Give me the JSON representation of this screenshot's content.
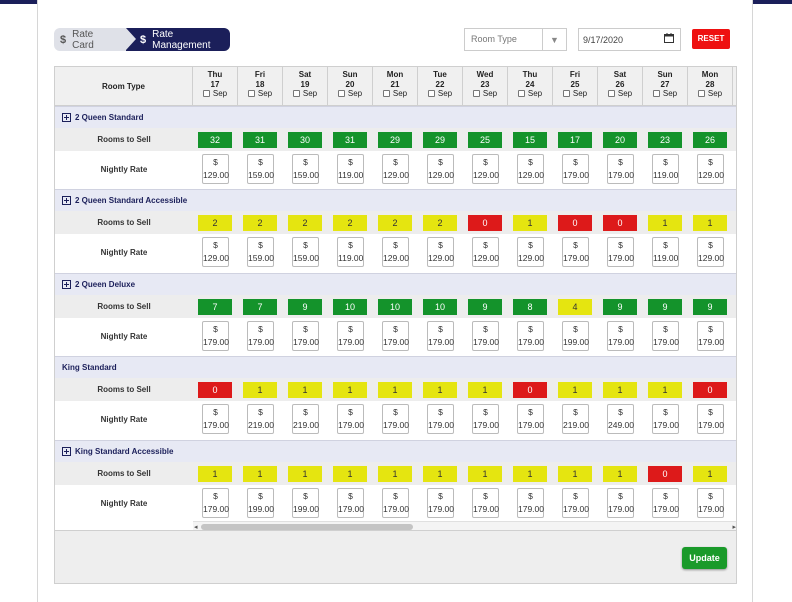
{
  "breadcrumbs": [
    {
      "icon": "dollar-icon",
      "label": "Rate Card"
    },
    {
      "icon": "dollar-icon",
      "label": "Rate Management"
    }
  ],
  "filters": {
    "room_type_placeholder": "Room Type",
    "date_value": "9/17/2020",
    "reset_label": "RESET"
  },
  "grid": {
    "room_type_header": "Room Type",
    "rooms_to_sell_label": "Rooms to Sell",
    "nightly_rate_label": "Nightly Rate",
    "currency": "$",
    "days": [
      {
        "dow": "Thu",
        "date": "17",
        "month": "Sep"
      },
      {
        "dow": "Fri",
        "date": "18",
        "month": "Sep"
      },
      {
        "dow": "Sat",
        "date": "19",
        "month": "Sep"
      },
      {
        "dow": "Sun",
        "date": "20",
        "month": "Sep"
      },
      {
        "dow": "Mon",
        "date": "21",
        "month": "Sep"
      },
      {
        "dow": "Tue",
        "date": "22",
        "month": "Sep"
      },
      {
        "dow": "Wed",
        "date": "23",
        "month": "Sep"
      },
      {
        "dow": "Thu",
        "date": "24",
        "month": "Sep"
      },
      {
        "dow": "Fri",
        "date": "25",
        "month": "Sep"
      },
      {
        "dow": "Sat",
        "date": "26",
        "month": "Sep"
      },
      {
        "dow": "Sun",
        "date": "27",
        "month": "Sep"
      },
      {
        "dow": "Mon",
        "date": "28",
        "month": "Sep"
      }
    ],
    "rooms": [
      {
        "name": "2 Queen Standard",
        "expandable": true,
        "sell": [
          "32",
          "31",
          "30",
          "31",
          "29",
          "29",
          "25",
          "15",
          "17",
          "20",
          "23",
          "26"
        ],
        "sell_status": [
          "green",
          "green",
          "green",
          "green",
          "green",
          "green",
          "green",
          "green",
          "green",
          "green",
          "green",
          "green"
        ],
        "rates": [
          "129.00",
          "159.00",
          "159.00",
          "119.00",
          "129.00",
          "129.00",
          "129.00",
          "129.00",
          "179.00",
          "179.00",
          "119.00",
          "129.00"
        ],
        "next_status": "green"
      },
      {
        "name": "2 Queen Standard Accessible",
        "expandable": true,
        "sell": [
          "2",
          "2",
          "2",
          "2",
          "2",
          "2",
          "0",
          "1",
          "0",
          "0",
          "1",
          "1"
        ],
        "sell_status": [
          "yellow",
          "yellow",
          "yellow",
          "yellow",
          "yellow",
          "yellow",
          "red",
          "yellow",
          "red",
          "red",
          "yellow",
          "yellow"
        ],
        "rates": [
          "129.00",
          "159.00",
          "159.00",
          "119.00",
          "129.00",
          "129.00",
          "129.00",
          "129.00",
          "179.00",
          "179.00",
          "119.00",
          "129.00"
        ],
        "next_status": "yellow"
      },
      {
        "name": "2 Queen Deluxe",
        "expandable": true,
        "sell": [
          "7",
          "7",
          "9",
          "10",
          "10",
          "10",
          "9",
          "8",
          "4",
          "9",
          "9",
          "9"
        ],
        "sell_status": [
          "green",
          "green",
          "green",
          "green",
          "green",
          "green",
          "green",
          "green",
          "yellow",
          "green",
          "green",
          "green"
        ],
        "rates": [
          "179.00",
          "179.00",
          "179.00",
          "179.00",
          "179.00",
          "179.00",
          "179.00",
          "179.00",
          "199.00",
          "179.00",
          "179.00",
          "179.00"
        ],
        "next_status": "green"
      },
      {
        "name": "King Standard",
        "expandable": false,
        "sell": [
          "0",
          "1",
          "1",
          "1",
          "1",
          "1",
          "1",
          "0",
          "1",
          "1",
          "1",
          "0"
        ],
        "sell_status": [
          "red",
          "yellow",
          "yellow",
          "yellow",
          "yellow",
          "yellow",
          "yellow",
          "red",
          "yellow",
          "yellow",
          "yellow",
          "red"
        ],
        "rates": [
          "179.00",
          "219.00",
          "219.00",
          "179.00",
          "179.00",
          "179.00",
          "179.00",
          "179.00",
          "219.00",
          "249.00",
          "179.00",
          "179.00"
        ],
        "next_status": "red"
      },
      {
        "name": "King Standard Accessible",
        "expandable": true,
        "sell": [
          "1",
          "1",
          "1",
          "1",
          "1",
          "1",
          "1",
          "1",
          "1",
          "1",
          "0",
          "1"
        ],
        "sell_status": [
          "yellow",
          "yellow",
          "yellow",
          "yellow",
          "yellow",
          "yellow",
          "yellow",
          "yellow",
          "yellow",
          "yellow",
          "red",
          "yellow"
        ],
        "rates": [
          "179.00",
          "199.00",
          "199.00",
          "179.00",
          "179.00",
          "179.00",
          "179.00",
          "179.00",
          "179.00",
          "179.00",
          "179.00",
          "179.00"
        ],
        "next_status": "yellow"
      }
    ]
  },
  "update_label": "Update",
  "colors": {
    "navy": "#1b1f5a",
    "green": "#14932b",
    "yellow": "#e5e510",
    "red": "#dd1a1a",
    "reset": "#ee1111"
  }
}
